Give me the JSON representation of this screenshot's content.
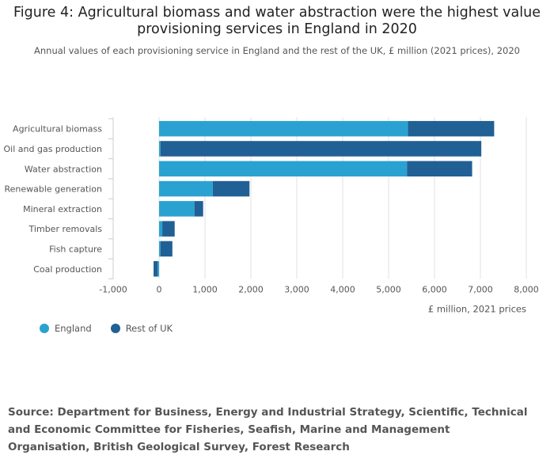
{
  "title_line1": "Figure 4: Agricultural biomass and water abstraction were the highest value",
  "title_line2": "provisioning services in England in 2020",
  "subtitle": "Annual values of each provisioning service in England and the rest of the UK, £ million (2021 prices), 2020",
  "source": "Source: Department for Business, Energy and Industrial Strategy, Scientific, Technical and Economic Committee for Fisheries, Seafish, Marine and Management Organisation, British Geological Survey, Forest Research",
  "colors": {
    "england": "#2aa2d1",
    "rest_of_uk": "#206095",
    "grid": "#e0e0e0",
    "axis_text": "#555555"
  },
  "chart_data": {
    "type": "bar",
    "orientation": "horizontal",
    "stacked": true,
    "title": "Figure 4: Agricultural biomass and water abstraction were the highest value provisioning services in England in 2020",
    "xlabel": "£ million, 2021 prices",
    "ylabel": "",
    "xlim": [
      -1000,
      8000
    ],
    "xticks": [
      -1000,
      0,
      1000,
      2000,
      3000,
      4000,
      5000,
      6000,
      7000,
      8000
    ],
    "xtick_labels": [
      "-1,000",
      "0",
      "1,000",
      "2,000",
      "3,000",
      "4,000",
      "5,000",
      "6,000",
      "7,000",
      "8,000"
    ],
    "categories": [
      "Agricultural biomass",
      "Oil and gas production",
      "Water abstraction",
      "Renewable generation",
      "Mineral extraction",
      "Timber removals",
      "Fish capture",
      "Coal production"
    ],
    "series": [
      {
        "name": "England",
        "values": [
          5420,
          30,
          5400,
          1170,
          770,
          70,
          30,
          -30
        ]
      },
      {
        "name": "Rest of UK",
        "values": [
          1880,
          6990,
          1420,
          800,
          190,
          270,
          260,
          -90
        ]
      }
    ],
    "legend_position": "bottom-left"
  }
}
